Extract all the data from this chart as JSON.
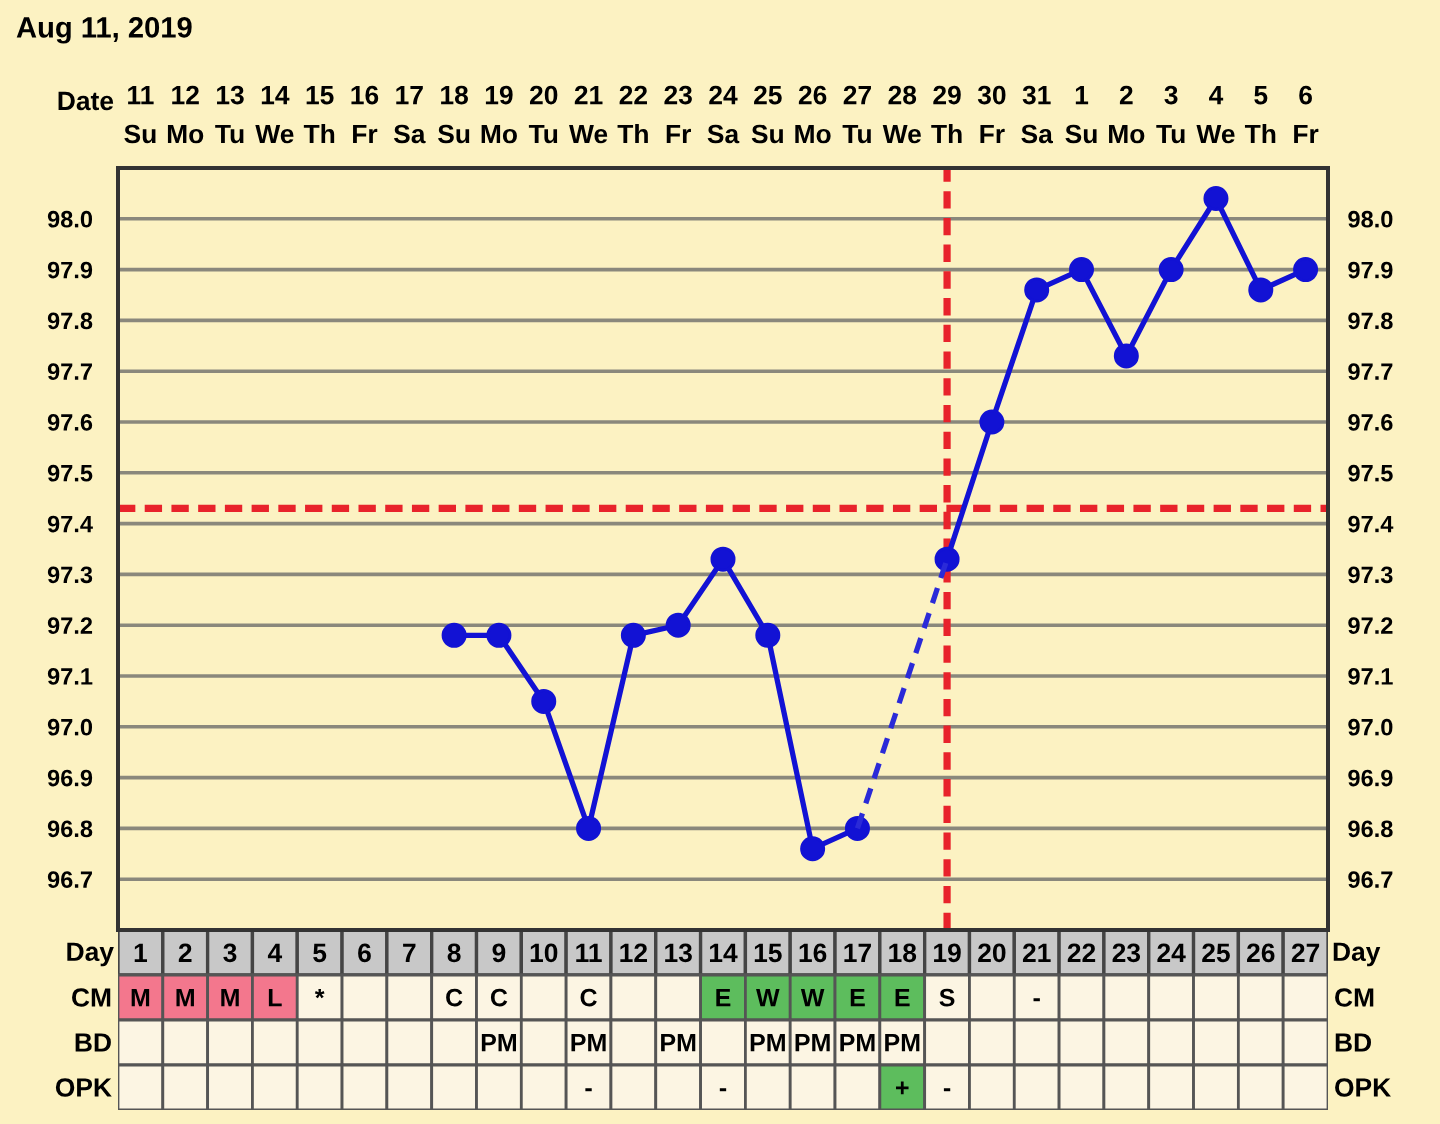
{
  "chart_data": [
    {
      "type": "line",
      "title": "Aug 11, 2019",
      "xlabel": "Day",
      "x2label": "Date",
      "categories": [
        "1",
        "2",
        "3",
        "4",
        "5",
        "6",
        "7",
        "8",
        "9",
        "10",
        "11",
        "12",
        "13",
        "14",
        "15",
        "16",
        "17",
        "18",
        "19",
        "20",
        "21",
        "22",
        "23",
        "24",
        "25",
        "26",
        "27"
      ],
      "x2lim": [
        "2019-08-10T12:00",
        "2019-09-06T12:00"
      ],
      "x2ticks": [
        {
          "value": "2019-08-11",
          "label": "11\nSu"
        },
        {
          "value": "2019-08-12",
          "label": "12\nMo"
        },
        {
          "value": "2019-08-13",
          "label": "13\nTu"
        },
        {
          "value": "2019-08-14",
          "label": "14\nWe"
        },
        {
          "value": "2019-08-15",
          "label": "15\nTh"
        },
        {
          "value": "2019-08-16",
          "label": "16\nFr"
        },
        {
          "value": "2019-08-17",
          "label": "17\nSa"
        },
        {
          "value": "2019-08-18",
          "label": "18\nSu"
        },
        {
          "value": "2019-08-19",
          "label": "19\nMo"
        },
        {
          "value": "2019-08-20",
          "label": "20\nTu"
        },
        {
          "value": "2019-08-21",
          "label": "21\nWe"
        },
        {
          "value": "2019-08-22",
          "label": "22\nTh"
        },
        {
          "value": "2019-08-23",
          "label": "23\nFr"
        },
        {
          "value": "2019-08-24",
          "label": "24\nSa"
        },
        {
          "value": "2019-08-25",
          "label": "25\nSu"
        },
        {
          "value": "2019-08-26",
          "label": "26\nMo"
        },
        {
          "value": "2019-08-27",
          "label": "27\nTu"
        },
        {
          "value": "2019-08-28",
          "label": "28\nWe"
        },
        {
          "value": "2019-08-29",
          "label": "29\nTh"
        },
        {
          "value": "2019-08-30",
          "label": "30\nFr"
        },
        {
          "value": "2019-08-31",
          "label": "31\nSa"
        },
        {
          "value": "2019-09-01",
          "label": "1\nSu"
        },
        {
          "value": "2019-09-02",
          "label": "2\nMo"
        },
        {
          "value": "2019-09-03",
          "label": "3\nTu"
        },
        {
          "value": "2019-09-04",
          "label": "4\nWe"
        },
        {
          "value": "2019-09-05",
          "label": "5\nTh"
        },
        {
          "value": "2019-09-06",
          "label": "6\nFr"
        }
      ],
      "ylim": [
        96.6,
        98.1
      ],
      "yticks": [
        96.7,
        96.8,
        96.9,
        {
          "value": 97,
          "label": "97.0"
        },
        97.1,
        97.2,
        97.3,
        97.4,
        97.5,
        97.6,
        97.7,
        97.8,
        97.9,
        {
          "value": 98,
          "label": "98.0"
        }
      ],
      "y2lim": [
        96.6,
        98.1
      ],
      "y2ticks": [
        96.7,
        96.8,
        96.9,
        {
          "value": 97,
          "label": "97.0"
        },
        97.1,
        97.2,
        97.3,
        97.4,
        97.5,
        97.6,
        97.7,
        97.8,
        97.9,
        {
          "value": 98,
          "label": "98.0"
        }
      ],
      "grid": true,
      "marker": "circle",
      "line_style": "solid",
      "series": [
        {
          "color": "#1212d4",
          "values": [
            null,
            null,
            null,
            null,
            null,
            null,
            null,
            97.18,
            97.18,
            97.05,
            96.8,
            97.18,
            97.2,
            97.33,
            97.18,
            96.76,
            96.8,
            null,
            97.33,
            97.6,
            97.86,
            97.9,
            97.73,
            97.9,
            98.04,
            97.86,
            97.9
          ]
        },
        {
          "type": "line",
          "color": "#2a2ad8",
          "line_style": "dashed",
          "marker": "none",
          "x": [
            "17",
            "19"
          ],
          "values": [
            96.8,
            97.33
          ]
        }
      ],
      "ref_lines": [
        {
          "axis": "y",
          "value": 97.43,
          "color": "#e8232b",
          "line_style": "dashed"
        },
        {
          "axis": "x",
          "value": "19",
          "color": "#e8232b",
          "line_style": "dashed"
        }
      ]
    },
    {
      "type": "other",
      "y_categories": [
        null,
        "CM",
        "BD",
        "OPK"
      ],
      "y2_categories": [
        null,
        "CM",
        "BD",
        "OPK"
      ],
      "cell_labels": [
        [
          null,
          null,
          null,
          null,
          null,
          null,
          null,
          null,
          null,
          null,
          null,
          null,
          null,
          null,
          null,
          null,
          null,
          null,
          null,
          null,
          null,
          null,
          null,
          null,
          null,
          null,
          null
        ],
        [
          "M",
          "M",
          "M",
          "L",
          "*",
          null,
          null,
          "C",
          "C",
          null,
          "C",
          null,
          null,
          "E",
          "W",
          "W",
          "E",
          "E",
          "S",
          null,
          "-",
          null,
          null,
          null,
          null,
          null,
          null
        ],
        [
          null,
          null,
          null,
          null,
          null,
          null,
          null,
          null,
          "PM",
          null,
          "PM",
          null,
          "PM",
          null,
          "PM",
          "PM",
          "PM",
          "PM",
          null,
          null,
          null,
          null,
          null,
          null,
          null,
          null,
          null
        ],
        [
          null,
          null,
          null,
          null,
          null,
          null,
          null,
          null,
          null,
          null,
          "-",
          null,
          null,
          "-",
          null,
          null,
          null,
          "+",
          "-",
          null,
          null,
          null,
          null,
          null,
          null,
          null,
          null
        ]
      ],
      "colors": [
        [
          "#c8c8c8",
          "#c8c8c8",
          "#c8c8c8",
          "#c8c8c8",
          "#c8c8c8",
          "#c8c8c8",
          "#c8c8c8",
          "#c8c8c8",
          "#c8c8c8",
          "#c8c8c8",
          "#c8c8c8",
          "#c8c8c8",
          "#c8c8c8",
          "#c8c8c8",
          "#c8c8c8",
          "#c8c8c8",
          "#c8c8c8",
          "#c8c8c8",
          "#c8c8c8",
          "#c8c8c8",
          "#c8c8c8",
          "#c8c8c8",
          "#c8c8c8",
          "#c8c8c8",
          "#c8c8c8",
          "#c8c8c8",
          "#c8c8c8"
        ],
        [
          "#f3778d",
          "#f3778d",
          "#f3778d",
          "#f3778d",
          "#fcf5e3",
          "#fcf5e3",
          "#fcf5e3",
          "#fcf5e3",
          "#fcf5e3",
          "#fcf5e3",
          "#fcf5e3",
          "#fcf5e3",
          "#fcf5e3",
          "#5dbd5d",
          "#5dbd5d",
          "#5dbd5d",
          "#5dbd5d",
          "#5dbd5d",
          "#fcf5e3",
          "#fcf5e3",
          "#fcf5e3",
          "#fcf5e3",
          "#fcf5e3",
          "#fcf5e3",
          "#fcf5e3",
          "#fcf5e3",
          "#fcf5e3"
        ],
        [
          "#fcf5e3",
          "#fcf5e3",
          "#fcf5e3",
          "#fcf5e3",
          "#fcf5e3",
          "#fcf5e3",
          "#fcf5e3",
          "#fcf5e3",
          "#fcf5e3",
          "#fcf5e3",
          "#fcf5e3",
          "#fcf5e3",
          "#fcf5e3",
          "#fcf5e3",
          "#fcf5e3",
          "#fcf5e3",
          "#fcf5e3",
          "#fcf5e3",
          "#fcf5e3",
          "#fcf5e3",
          "#fcf5e3",
          "#fcf5e3",
          "#fcf5e3",
          "#fcf5e3",
          "#fcf5e3",
          "#fcf5e3",
          "#fcf5e3"
        ],
        [
          "#fcf5e3",
          "#fcf5e3",
          "#fcf5e3",
          "#fcf5e3",
          "#fcf5e3",
          "#fcf5e3",
          "#fcf5e3",
          "#fcf5e3",
          "#fcf5e3",
          "#fcf5e3",
          "#fcf5e3",
          "#fcf5e3",
          "#fcf5e3",
          "#fcf5e3",
          "#fcf5e3",
          "#fcf5e3",
          "#fcf5e3",
          "#5dbd5d",
          "#fcf5e3",
          "#fcf5e3",
          "#fcf5e3",
          "#fcf5e3",
          "#fcf5e3",
          "#fcf5e3",
          "#fcf5e3",
          "#fcf5e3",
          "#fcf5e3"
        ]
      ]
    }
  ]
}
